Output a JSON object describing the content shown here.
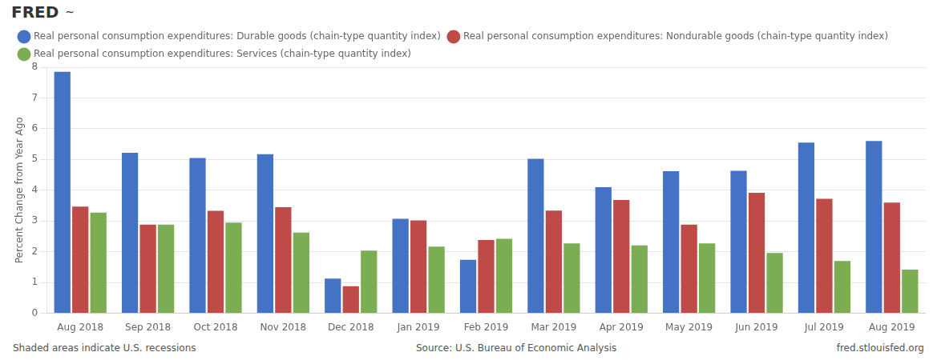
{
  "chart_data": {
    "type": "bar",
    "annotations": [
      "FRED",
      "~",
      "Shaded areas indicate U.S. recessions",
      "Source: U.S. Bureau of Economic Analysis",
      "fred.stlouisfed.org"
    ],
    "ylabel": "Percent Change from Year Ago",
    "categories": [
      "Aug 2018",
      "Sep 2018",
      "Oct 2018",
      "Nov 2018",
      "Dec 2018",
      "Jan 2019",
      "Feb 2019",
      "Mar 2019",
      "Apr 2019",
      "May 2019",
      "Jun 2019",
      "Jul 2019",
      "Aug 2019"
    ],
    "series": [
      {
        "name": "Real personal consumption expenditures: Durable goods (chain-type quantity index)",
        "color": "#4472C4",
        "values": [
          7.85,
          5.22,
          5.05,
          5.17,
          1.13,
          3.07,
          1.74,
          5.02,
          4.1,
          4.62,
          4.63,
          5.55,
          5.6
        ]
      },
      {
        "name": "Real personal consumption expenditures: Nondurable goods (chain-type quantity index)",
        "color": "#BE4B48",
        "values": [
          3.47,
          2.88,
          3.33,
          3.45,
          0.88,
          3.02,
          2.38,
          3.34,
          3.68,
          2.88,
          3.92,
          3.72,
          3.6
        ]
      },
      {
        "name": "Real personal consumption expenditures: Services (chain-type quantity index)",
        "color": "#7BAE52",
        "values": [
          3.27,
          2.88,
          2.95,
          2.62,
          2.04,
          2.17,
          2.42,
          2.27,
          2.21,
          2.27,
          1.96,
          1.7,
          1.42
        ]
      }
    ],
    "ylim": [
      0,
      8
    ],
    "yticks": [
      0,
      1,
      2,
      3,
      4,
      5,
      6,
      7,
      8
    ],
    "grid": true,
    "legend": "top"
  }
}
